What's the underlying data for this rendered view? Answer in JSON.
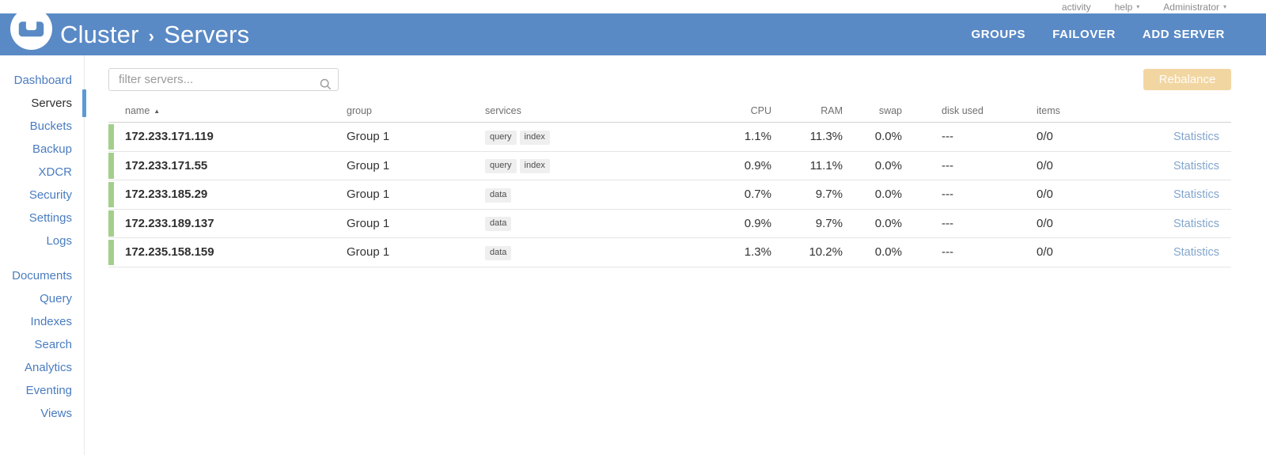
{
  "topbar": {
    "activity": "activity",
    "help": "help",
    "user": "Administrator"
  },
  "header": {
    "breadcrumb": {
      "root": "Cluster",
      "separator": "›",
      "current": "Servers"
    },
    "menu": [
      "GROUPS",
      "FAILOVER",
      "ADD SERVER"
    ]
  },
  "sidebar": {
    "items_top": [
      "Dashboard",
      "Servers",
      "Buckets",
      "Backup",
      "XDCR",
      "Security",
      "Settings",
      "Logs"
    ],
    "items_bottom": [
      "Documents",
      "Query",
      "Indexes",
      "Search",
      "Analytics",
      "Eventing",
      "Views"
    ],
    "active_item": "Servers"
  },
  "toolbar": {
    "filter_placeholder": "filter servers...",
    "rebalance_label": "Rebalance"
  },
  "table": {
    "columns": [
      "name",
      "group",
      "services",
      "CPU",
      "RAM",
      "swap",
      "disk used",
      "items"
    ],
    "sort": {
      "column": "name",
      "direction": "asc"
    },
    "stats_label": "Statistics",
    "rows": [
      {
        "name": "172.233.171.119",
        "group": "Group 1",
        "services": [
          "query",
          "index"
        ],
        "cpu": "1.1%",
        "ram": "11.3%",
        "swap": "0.0%",
        "disk": "---",
        "items": "0/0"
      },
      {
        "name": "172.233.171.55",
        "group": "Group 1",
        "services": [
          "query",
          "index"
        ],
        "cpu": "0.9%",
        "ram": "11.1%",
        "swap": "0.0%",
        "disk": "---",
        "items": "0/0"
      },
      {
        "name": "172.233.185.29",
        "group": "Group 1",
        "services": [
          "data"
        ],
        "cpu": "0.7%",
        "ram": "9.7%",
        "swap": "0.0%",
        "disk": "---",
        "items": "0/0"
      },
      {
        "name": "172.233.189.137",
        "group": "Group 1",
        "services": [
          "data"
        ],
        "cpu": "0.9%",
        "ram": "9.7%",
        "swap": "0.0%",
        "disk": "---",
        "items": "0/0"
      },
      {
        "name": "172.235.158.159",
        "group": "Group 1",
        "services": [
          "data"
        ],
        "cpu": "1.3%",
        "ram": "10.2%",
        "swap": "0.0%",
        "disk": "---",
        "items": "0/0"
      }
    ]
  },
  "colors": {
    "header_blue": "#5a8ac6",
    "status_green": "#a3cf8b",
    "rebalance_disabled_bg": "#f2d6a2",
    "sidebar_link": "#4a7cbf",
    "stats_link": "#83a6cd"
  }
}
